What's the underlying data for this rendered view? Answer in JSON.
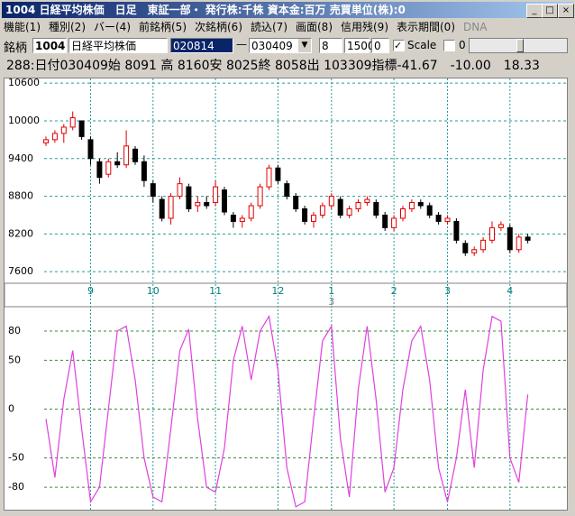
{
  "window": {
    "title": "1004 日経平均株価　日足　東証一部・ 発行株:千株 資本金:百万 売買単位(株):0"
  },
  "menu": [
    "機能(1)",
    "種別(2)",
    "バー(4)",
    "前銘柄(5)",
    "次銘柄(6)",
    "読込(7)",
    "画面(8)",
    "信用残(9)",
    "表示期間(0)",
    "DNA"
  ],
  "toolbar": {
    "label": "銘柄",
    "code": "1004",
    "name": "日経平均株価",
    "from": "020814",
    "dash": "—",
    "to": "030409",
    "f1": "8",
    "f2": "1500",
    "f3": "0",
    "scale": "Scale",
    "f4": "0"
  },
  "info_line": "288:日付030409始 8091 高 8160安 8025終 8058出 103309指標-41.67　-10.00　18.33",
  "chart_data": [
    {
      "type": "candlestick",
      "up_color": "#e00000",
      "down_color": "#000000",
      "categories": [
        null,
        null,
        null,
        null,
        null,
        "9",
        null,
        null,
        null,
        null,
        null,
        null,
        "10",
        null,
        null,
        null,
        null,
        null,
        null,
        "11",
        null,
        null,
        null,
        null,
        null,
        null,
        "12",
        null,
        null,
        null,
        null,
        null,
        "1",
        null,
        null,
        null,
        null,
        null,
        null,
        "2",
        null,
        null,
        null,
        null,
        null,
        "3",
        null,
        null,
        null,
        null,
        null,
        null,
        "4",
        null,
        null
      ],
      "year_labels": [
        null,
        null,
        null,
        null,
        null,
        null,
        null,
        null,
        null,
        null,
        null,
        null,
        null,
        null,
        null,
        null,
        null,
        null,
        null,
        null,
        null,
        null,
        null,
        null,
        null,
        null,
        null,
        null,
        null,
        null,
        null,
        null,
        "3",
        null,
        null,
        null,
        null,
        null,
        null,
        null,
        null,
        null,
        null,
        null,
        null,
        null,
        null,
        null,
        null,
        null,
        null,
        null,
        null,
        null,
        null
      ],
      "open": [
        9650,
        9700,
        9800,
        9900,
        10000,
        9700,
        9350,
        9150,
        9350,
        9300,
        9550,
        9350,
        9000,
        8750,
        8450,
        8800,
        8950,
        8650,
        8700,
        8700,
        8900,
        8500,
        8400,
        8450,
        8650,
        8950,
        9250,
        9000,
        8800,
        8600,
        8400,
        8500,
        8650,
        8750,
        8500,
        8600,
        8700,
        8700,
        8500,
        8300,
        8450,
        8600,
        8700,
        8650,
        8500,
        8400,
        8400,
        8050,
        7900,
        7950,
        8100,
        8300,
        8300,
        7950,
        8150
      ],
      "high": [
        9750,
        9850,
        9950,
        10150,
        10000,
        9750,
        9400,
        9400,
        9500,
        9850,
        9600,
        9450,
        9050,
        8800,
        8850,
        9100,
        9000,
        8800,
        8800,
        9050,
        8950,
        8550,
        8500,
        8700,
        9000,
        9300,
        9300,
        9050,
        8850,
        8650,
        8550,
        8700,
        8850,
        8800,
        8650,
        8750,
        8800,
        8750,
        8550,
        8500,
        8650,
        8750,
        8750,
        8700,
        8550,
        8500,
        8450,
        8100,
        8000,
        8150,
        8400,
        8400,
        8350,
        8200,
        8200
      ],
      "low": [
        9600,
        9650,
        9650,
        9850,
        9700,
        9300,
        9000,
        9100,
        9250,
        9250,
        9300,
        8950,
        8700,
        8400,
        8350,
        8750,
        8550,
        8550,
        8600,
        8650,
        8500,
        8300,
        8300,
        8400,
        8600,
        8900,
        9000,
        8750,
        8550,
        8350,
        8300,
        8450,
        8600,
        8450,
        8450,
        8550,
        8650,
        8450,
        8250,
        8250,
        8400,
        8550,
        8600,
        8450,
        8350,
        8350,
        8050,
        7850,
        7850,
        7900,
        8050,
        8250,
        7900,
        7900,
        8050
      ],
      "close": [
        9700,
        9800,
        9900,
        10050,
        9750,
        9400,
        9100,
        9350,
        9300,
        9600,
        9350,
        9050,
        8800,
        8450,
        8800,
        9000,
        8600,
        8700,
        8650,
        8950,
        8550,
        8400,
        8450,
        8650,
        8950,
        9250,
        9050,
        8800,
        8600,
        8400,
        8500,
        8650,
        8800,
        8500,
        8600,
        8700,
        8750,
        8500,
        8300,
        8450,
        8600,
        8700,
        8650,
        8500,
        8400,
        8450,
        8100,
        7900,
        7950,
        8100,
        8300,
        8350,
        7950,
        8150,
        8100
      ],
      "ylim": [
        7430,
        10660
      ],
      "yticks": [
        10600,
        10000,
        9400,
        8800,
        8200,
        7600
      ],
      "grid": true,
      "grid_color": "#2a9a9a"
    },
    {
      "type": "line",
      "color": "#e040e0",
      "values": [
        -10,
        -70,
        10,
        60,
        -20,
        -95,
        -80,
        0,
        80,
        85,
        30,
        -50,
        -90,
        -95,
        -20,
        60,
        82,
        -10,
        -80,
        -85,
        -40,
        50,
        85,
        30,
        80,
        95,
        40,
        -60,
        -100,
        -95,
        -10,
        70,
        85,
        -30,
        -90,
        20,
        85,
        10,
        -85,
        -60,
        20,
        70,
        85,
        30,
        -60,
        -95,
        -50,
        20,
        -60,
        40,
        95,
        90,
        -50,
        -75,
        15
      ],
      "ylim": [
        -103,
        104
      ],
      "yticks": [
        80,
        50,
        0,
        -50,
        -80
      ],
      "grid": true,
      "grid_color": "#3a8a3a"
    }
  ]
}
